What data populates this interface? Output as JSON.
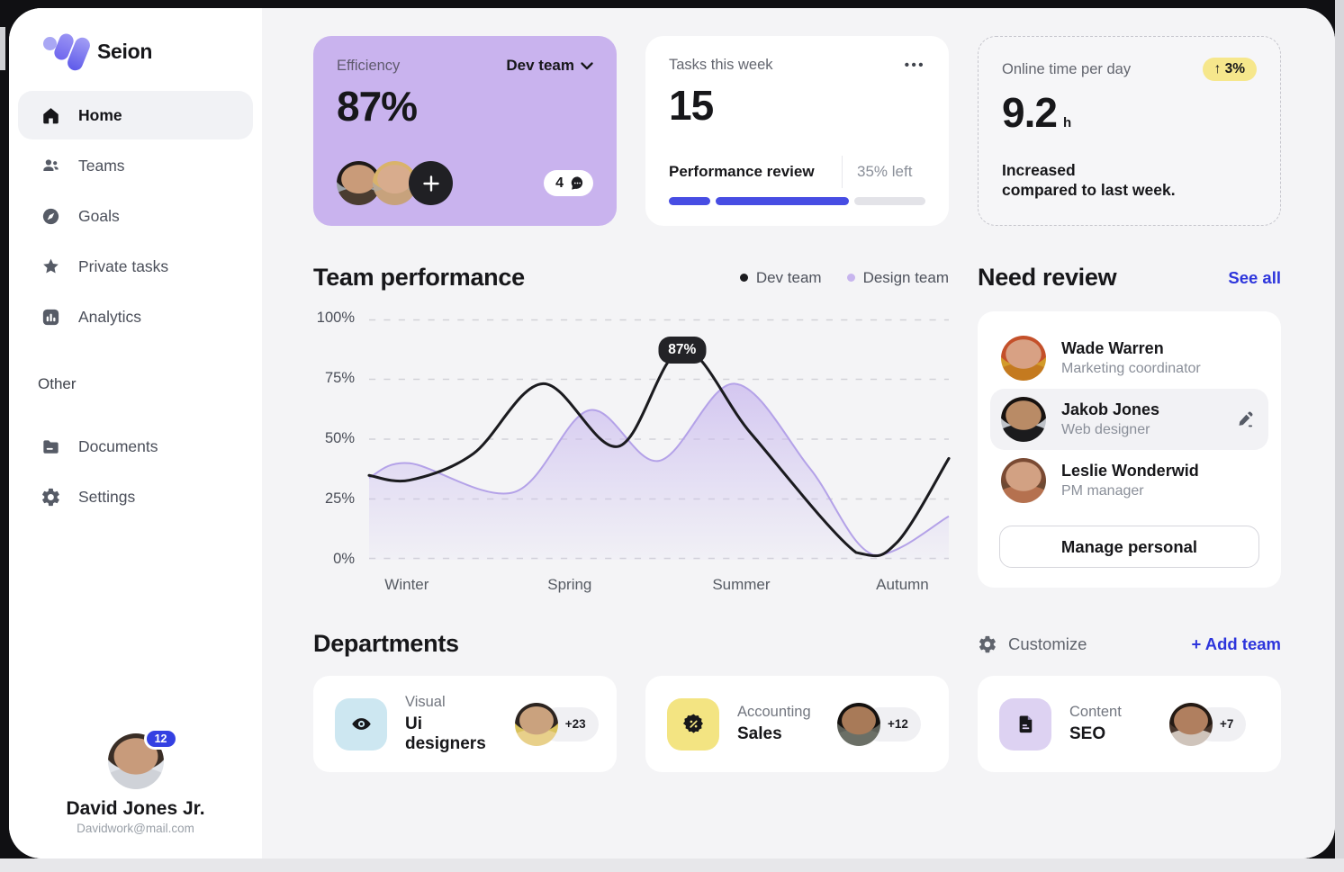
{
  "brand": {
    "name": "Seion"
  },
  "sidebar": {
    "items": [
      {
        "label": "Home",
        "icon": "home-icon",
        "active": true
      },
      {
        "label": "Teams",
        "icon": "users-icon",
        "active": false
      },
      {
        "label": "Goals",
        "icon": "compass-icon",
        "active": false
      },
      {
        "label": "Private tasks",
        "icon": "star-icon",
        "active": false
      },
      {
        "label": "Analytics",
        "icon": "bar-chart-icon",
        "active": false
      }
    ],
    "section_label": "Other",
    "other_items": [
      {
        "label": "Documents",
        "icon": "folder-icon"
      },
      {
        "label": "Settings",
        "icon": "gear-icon"
      }
    ],
    "profile": {
      "name": "David Jones Jr.",
      "email": "Davidwork@mail.com",
      "notification_count": "12"
    }
  },
  "stats": {
    "efficiency": {
      "title": "Efficiency",
      "value": "87%",
      "team_selector_label": "Dev team",
      "comments_count": "4"
    },
    "tasks": {
      "title": "Tasks this week",
      "value": "15",
      "menu_icon": "•••",
      "task_label": "Performance review",
      "remaining_label": "35% left",
      "progress_segments_percent": [
        16,
        52
      ]
    },
    "online_time": {
      "title": "Online time per day",
      "value": "9.2",
      "unit": "h",
      "delta_badge": "↑ 3%",
      "note": "Increased compared to last week.",
      "note_line1": "Increased",
      "note_line2": "compared to last week."
    }
  },
  "performance_section": {
    "title": "Team performance",
    "legend": [
      {
        "label": "Dev team",
        "color": "#1b1b1f"
      },
      {
        "label": "Design team",
        "color": "#c7b5ee"
      }
    ]
  },
  "chart_data": {
    "type": "area",
    "title": "Team performance",
    "x_categories": [
      "Winter",
      "Spring",
      "Summer",
      "Autumn"
    ],
    "y_ticks": [
      "100%",
      "75%",
      "50%",
      "25%",
      "0%"
    ],
    "ylim": [
      0,
      100
    ],
    "grid": "dashed-horizontal",
    "legend_position": "top-right",
    "annotation": {
      "series": "Dev team",
      "label": "87%",
      "value": 87,
      "x_fraction": 0.54
    },
    "series": [
      {
        "name": "Design team",
        "type": "area",
        "color": "#c7b5ee",
        "points_x_fraction": [
          0,
          0.07,
          0.25,
          0.38,
          0.5,
          0.63,
          0.76,
          0.87,
          1
        ],
        "points_y_percent": [
          34,
          40,
          28,
          62,
          41,
          73,
          38,
          2,
          18
        ]
      },
      {
        "name": "Dev team",
        "type": "line",
        "color": "#1b1b1f",
        "points_x_fraction": [
          0,
          0.07,
          0.18,
          0.3,
          0.43,
          0.54,
          0.66,
          0.84,
          0.91,
          1
        ],
        "points_y_percent": [
          35,
          33,
          44,
          73,
          47,
          87,
          52,
          3,
          7,
          42
        ]
      }
    ]
  },
  "need_review": {
    "title": "Need review",
    "see_all_label": "See all",
    "people": [
      {
        "name": "Wade Warren",
        "role": "Marketing coordinator",
        "highlighted": false
      },
      {
        "name": "Jakob Jones",
        "role": "Web designer",
        "highlighted": true
      },
      {
        "name": "Leslie Wonderwid",
        "role": "PM manager",
        "highlighted": false
      }
    ],
    "manage_button_label": "Manage personal"
  },
  "departments": {
    "title": "Departments",
    "customize_label": "Customize",
    "add_team_label": "+ Add team",
    "cards": [
      {
        "category": "Visual",
        "team": "Ui designers",
        "extra_members": "+23",
        "icon": "eye-icon",
        "tile_color": "#cde7f1"
      },
      {
        "category": "Accounting",
        "team": "Sales",
        "extra_members": "+12",
        "icon": "discount-badge-icon",
        "tile_color": "#f3e482"
      },
      {
        "category": "Content",
        "team": "SEO",
        "extra_members": "+7",
        "icon": "document-icon",
        "tile_color": "#ddd2f2"
      }
    ]
  },
  "colors": {
    "accent_blue": "#2d35dc",
    "progress_blue": "#474de3",
    "efficiency_card_purple": "#c9b3ee",
    "delta_badge_yellow": "#f6e78c",
    "main_background": "#f4f4f6",
    "chart_area_purple": "#c7b5ee",
    "annotation_badge_dark": "#232327"
  }
}
